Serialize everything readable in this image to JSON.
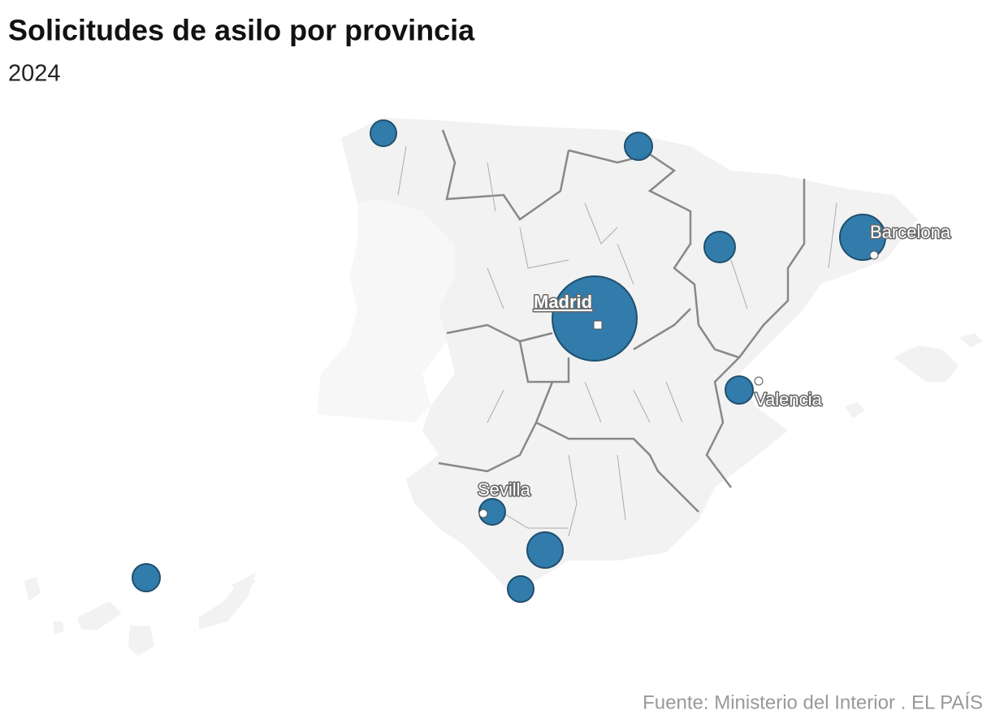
{
  "header": {
    "title": "Solicitudes de asilo por provincia",
    "subtitle": "2024"
  },
  "map": {
    "labels": [
      "Barcelona",
      "Madrid",
      "Valencia",
      "Sevilla"
    ]
  },
  "footer": {
    "source": "Fuente: Ministerio del Interior . EL PAÍS"
  }
}
